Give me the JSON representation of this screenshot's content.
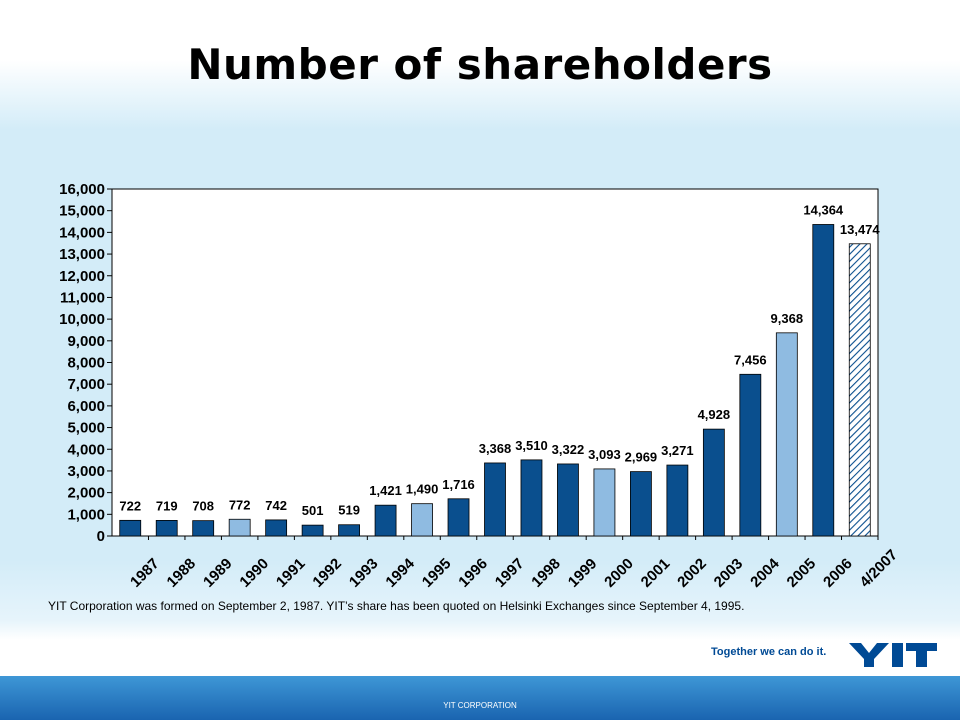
{
  "slide": {
    "title": "Number of shareholders",
    "footnote": "YIT Corporation was formed on September 2, 1987. YIT’s share has been quoted on Helsinki Exchanges since September 4, 1995.",
    "tagline": "Together we can do it.",
    "logo_text": "YIT",
    "footer": "YIT CORPORATION"
  },
  "colors": {
    "dark_bar": "#0a4f8e",
    "light_bar": "#8fbbe1",
    "hatch": "#0a4f8e"
  },
  "chart_data": {
    "type": "bar",
    "categories": [
      "1987",
      "1988",
      "1989",
      "1990",
      "1991",
      "1992",
      "1993",
      "1994",
      "1995",
      "1996",
      "1997",
      "1998",
      "1999",
      "2000",
      "2001",
      "2002",
      "2003",
      "2004",
      "2005",
      "2006",
      "4/2007"
    ],
    "values": [
      722,
      719,
      708,
      772,
      742,
      501,
      519,
      1421,
      1490,
      1716,
      3368,
      3510,
      3322,
      3093,
      2969,
      3271,
      4928,
      7456,
      9368,
      14364,
      13474
    ],
    "value_labels": [
      "722",
      "719",
      "708",
      "772",
      "742",
      "501",
      "519",
      "1,421",
      "1,490",
      "1,716",
      "3,368",
      "3,510",
      "3,322",
      "3,093",
      "2,969",
      "3,271",
      "4,928",
      "7,456",
      "9,368",
      "14,364",
      "13,474"
    ],
    "bar_styles": [
      "dark",
      "dark",
      "dark",
      "light",
      "dark",
      "dark",
      "dark",
      "dark",
      "light",
      "dark",
      "dark",
      "dark",
      "dark",
      "light",
      "dark",
      "dark",
      "dark",
      "dark",
      "light",
      "dark",
      "hatched"
    ],
    "ylim": [
      0,
      16000
    ],
    "yticks": [
      0,
      1000,
      2000,
      3000,
      4000,
      5000,
      6000,
      7000,
      8000,
      9000,
      10000,
      11000,
      12000,
      13000,
      14000,
      15000,
      16000
    ],
    "ytick_labels": [
      "0",
      "1,000",
      "2,000",
      "3,000",
      "4,000",
      "5,000",
      "6,000",
      "7,000",
      "8,000",
      "9,000",
      "10,000",
      "11,000",
      "12,000",
      "13,000",
      "14,000",
      "15,000",
      "16,000"
    ],
    "title": "",
    "xlabel": "",
    "ylabel": "",
    "grid": false,
    "legend": "none"
  }
}
